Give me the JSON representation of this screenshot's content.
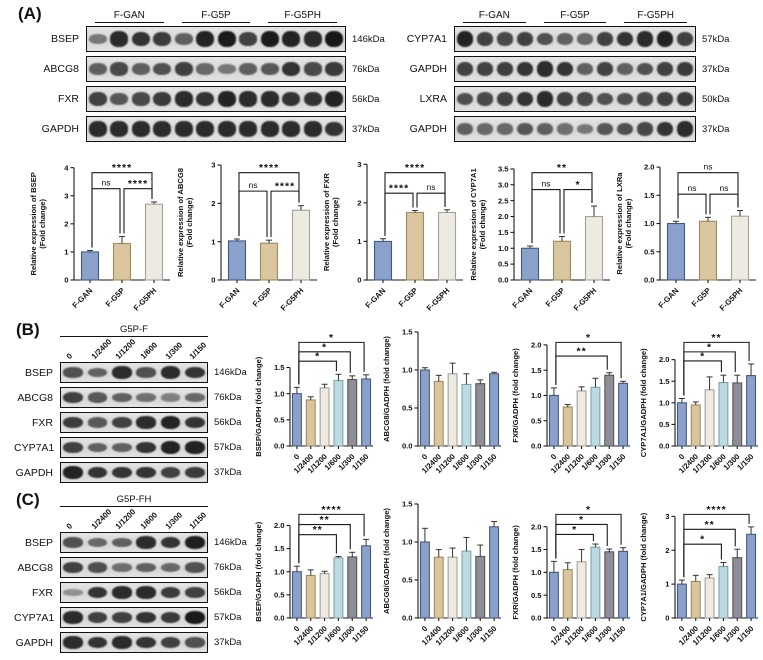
{
  "panels": {
    "a": "(A)",
    "b": "(B)",
    "c": "(C)"
  },
  "colors": {
    "blue": {
      "fill": "#8AA2CB",
      "stroke": "#46597E"
    },
    "tan": {
      "fill": "#D9C59E",
      "stroke": "#9E8B61"
    },
    "cream": {
      "fill": "#ECEAE1",
      "stroke": "#A5A299"
    },
    "lightblue": {
      "fill": "#BCDAE2",
      "stroke": "#7FA4B0"
    },
    "gray": {
      "fill": "#8E8E96",
      "stroke": "#54545C"
    }
  },
  "palettes": {
    "a": [
      "blue",
      "tan",
      "cream"
    ],
    "bc": [
      "blue",
      "tan",
      "cream",
      "lightblue",
      "gray",
      "blue"
    ]
  },
  "blots": [
    {
      "id": "a-left",
      "layout": "grouped",
      "groups": [
        "F-GAN",
        "F-G5P",
        "F-G5PH"
      ],
      "rows": [
        {
          "protein": "BSEP",
          "kda": "146kDa",
          "bands": [
            0.35,
            0.85,
            0.8,
            0.75,
            0.5,
            0.9,
            0.95,
            0.7,
            0.95,
            0.9,
            0.85,
            0.97
          ]
        },
        {
          "protein": "ABCG8",
          "kda": "76kDa",
          "bands": [
            0.5,
            0.65,
            0.5,
            0.6,
            0.7,
            0.45,
            0.35,
            0.5,
            0.55,
            0.8,
            0.65,
            0.75
          ]
        },
        {
          "protein": "FXR",
          "kda": "56kDa",
          "bands": [
            0.7,
            0.55,
            0.65,
            0.75,
            0.85,
            0.8,
            0.9,
            0.85,
            0.85,
            0.8,
            0.8,
            0.9
          ]
        },
        {
          "protein": "GAPDH",
          "kda": "37kDa",
          "bands": [
            0.85,
            0.85,
            0.85,
            0.85,
            0.85,
            0.85,
            0.85,
            0.85,
            0.85,
            0.85,
            0.85,
            0.8
          ]
        }
      ]
    },
    {
      "id": "a-right",
      "layout": "grouped",
      "groups": [
        "F-GAN",
        "F-G5P",
        "F-G5PH"
      ],
      "rows": [
        {
          "protein": "CYP7A1",
          "kda": "57kDa",
          "bands": [
            0.9,
            0.7,
            0.65,
            0.7,
            0.6,
            0.5,
            0.45,
            0.7,
            0.8,
            0.85,
            0.9,
            0.7
          ]
        },
        {
          "protein": "GAPDH",
          "kda": "37kDa",
          "bands": [
            0.7,
            0.7,
            0.72,
            0.8,
            0.85,
            0.8,
            0.5,
            0.7,
            0.5,
            0.6,
            0.7,
            0.75
          ]
        },
        {
          "protein": "LXRA",
          "kda": "50kDa",
          "bands": [
            0.6,
            0.65,
            0.7,
            0.8,
            0.85,
            0.7,
            0.65,
            0.6,
            0.6,
            0.65,
            0.7,
            0.75
          ]
        },
        {
          "protein": "GAPDH",
          "kda": "37kDa",
          "bands": [
            0.5,
            0.45,
            0.45,
            0.55,
            0.5,
            0.4,
            0.35,
            0.55,
            0.6,
            0.65,
            0.8,
            0.85
          ]
        }
      ]
    },
    {
      "id": "b",
      "layout": "dose",
      "title": "G5P-F",
      "lane_labels": [
        "0",
        "1/2400",
        "1/1200",
        "1/600",
        "1/300",
        "1/150"
      ],
      "rows": [
        {
          "protein": "BSEP",
          "kda": "146kDa",
          "bands": [
            0.6,
            0.5,
            0.85,
            0.6,
            0.85,
            0.8
          ]
        },
        {
          "protein": "ABCG8",
          "kda": "76kDa",
          "bands": [
            0.7,
            0.55,
            0.5,
            0.4,
            0.3,
            0.45
          ]
        },
        {
          "protein": "FXR",
          "kda": "56kDa",
          "bands": [
            0.75,
            0.55,
            0.7,
            0.85,
            0.9,
            0.8
          ]
        },
        {
          "protein": "CYP7A1",
          "kda": "57kDa",
          "bands": [
            0.7,
            0.5,
            0.5,
            0.8,
            0.9,
            0.9
          ]
        },
        {
          "protein": "GAPDH",
          "kda": "37kDa",
          "bands": [
            0.9,
            0.8,
            0.8,
            0.8,
            0.7,
            0.75
          ]
        }
      ]
    },
    {
      "id": "c",
      "layout": "dose",
      "title": "G5P-FH",
      "lane_labels": [
        "0",
        "1/2400",
        "1/1200",
        "1/600",
        "1/300",
        "1/150"
      ],
      "rows": [
        {
          "protein": "BSEP",
          "kda": "146kDa",
          "bands": [
            0.6,
            0.45,
            0.5,
            0.85,
            0.8,
            0.92
          ]
        },
        {
          "protein": "ABCG8",
          "kda": "76kDa",
          "bands": [
            0.7,
            0.6,
            0.4,
            0.5,
            0.45,
            0.6
          ]
        },
        {
          "protein": "FXR",
          "kda": "56kDa",
          "bands": [
            0.18,
            0.8,
            0.85,
            0.85,
            0.75,
            0.7
          ]
        },
        {
          "protein": "CYP7A1",
          "kda": "57kDa",
          "bands": [
            0.85,
            0.7,
            0.7,
            0.8,
            0.75,
            0.95
          ]
        },
        {
          "protein": "GAPDH",
          "kda": "37kDa",
          "bands": [
            0.85,
            0.8,
            0.85,
            0.8,
            0.7,
            0.6
          ]
        }
      ]
    }
  ],
  "chart_data": [
    {
      "id": "a-bsep",
      "panel": "a",
      "type": "bar",
      "palette": "a",
      "ylabel_lines": [
        "Relative expression of BSEP",
        "(Fold change)"
      ],
      "categories": [
        "F-GAN",
        "F-G5P",
        "F-G5PH"
      ],
      "values": [
        1.0,
        1.3,
        2.7
      ],
      "errors": [
        0.05,
        0.25,
        0.08
      ],
      "ylim": [
        0,
        4
      ],
      "yticks": [
        "0",
        "1",
        "2",
        "3",
        "4"
      ],
      "sig": [
        {
          "a": 0,
          "b": 1,
          "label": "ns",
          "y": 3.25
        },
        {
          "a": 1,
          "b": 2,
          "label": "****",
          "y": 3.25
        },
        {
          "a": 0,
          "b": 2,
          "label": "****",
          "y": 3.82
        }
      ]
    },
    {
      "id": "a-abcg8",
      "panel": "a",
      "type": "bar",
      "palette": "a",
      "ylabel_lines": [
        "Relative expression of ABCG8",
        "(Fold change)"
      ],
      "categories": [
        "F-GAN",
        "F-G5P",
        "F-G5PH"
      ],
      "values": [
        1.02,
        0.96,
        1.82
      ],
      "errors": [
        0.05,
        0.08,
        0.12
      ],
      "ylim": [
        0,
        3
      ],
      "yticks": [
        "0",
        "1",
        "2",
        "3"
      ],
      "sig": [
        {
          "a": 0,
          "b": 1,
          "label": "ns",
          "y": 2.32
        },
        {
          "a": 1,
          "b": 2,
          "label": "****",
          "y": 2.32
        },
        {
          "a": 0,
          "b": 2,
          "label": "****",
          "y": 2.8
        }
      ]
    },
    {
      "id": "a-fxr",
      "panel": "a",
      "type": "bar",
      "palette": "a",
      "ylabel_lines": [
        "Relative expression of FXR",
        "(Fold change)"
      ],
      "categories": [
        "F-GAN",
        "F-G5P",
        "F-G5PH"
      ],
      "values": [
        1.0,
        1.75,
        1.75
      ],
      "errors": [
        0.07,
        0.05,
        0.07
      ],
      "ylim": [
        0,
        3
      ],
      "yticks": [
        "0",
        "1",
        "2",
        "3"
      ],
      "sig": [
        {
          "a": 0,
          "b": 1,
          "label": "****",
          "y": 2.25
        },
        {
          "a": 1,
          "b": 2,
          "label": "ns",
          "y": 2.25
        },
        {
          "a": 0,
          "b": 2,
          "label": "****",
          "y": 2.78
        }
      ]
    },
    {
      "id": "a-cyp7a1",
      "panel": "a",
      "type": "bar",
      "palette": "a",
      "ylabel_lines": [
        "Relative expression of CYP7A1",
        "(Fold change)"
      ],
      "categories": [
        "F-GAN",
        "F-G5P",
        "F-G5PH"
      ],
      "values": [
        1.0,
        1.22,
        2.0
      ],
      "errors": [
        0.07,
        0.15,
        0.33
      ],
      "ylim": [
        0,
        3.5
      ],
      "yticks": [
        "0.0",
        "0.5",
        "1.0",
        "1.5",
        "2.0",
        "2.5",
        "3.0",
        "3.5"
      ],
      "sig": [
        {
          "a": 0,
          "b": 1,
          "label": "ns",
          "y": 2.85
        },
        {
          "a": 1,
          "b": 2,
          "label": "*",
          "y": 2.85
        },
        {
          "a": 0,
          "b": 2,
          "label": "**",
          "y": 3.38
        }
      ]
    },
    {
      "id": "a-lxra",
      "panel": "a",
      "type": "bar",
      "palette": "a",
      "ylabel_lines": [
        "Relative expression of LXRa",
        "(Fold change)"
      ],
      "categories": [
        "F-GAN",
        "F-G5P",
        "F-G5PH"
      ],
      "values": [
        1.0,
        1.04,
        1.13
      ],
      "errors": [
        0.04,
        0.07,
        0.1
      ],
      "ylim": [
        0,
        2
      ],
      "yticks": [
        "0.0",
        "0.5",
        "1.0",
        "1.5",
        "2.0"
      ],
      "sig": [
        {
          "a": 0,
          "b": 1,
          "label": "ns",
          "y": 1.52
        },
        {
          "a": 1,
          "b": 2,
          "label": "ns",
          "y": 1.52
        },
        {
          "a": 0,
          "b": 2,
          "label": "ns",
          "y": 1.9
        }
      ]
    },
    {
      "id": "b-bsep",
      "panel": "b",
      "type": "bar",
      "palette": "bc",
      "ylabel_lines": [
        "BSEP/GADPH (fold change)"
      ],
      "categories": [
        "0",
        "1/2400",
        "1/1200",
        "1/600",
        "1/300",
        "1/150"
      ],
      "values": [
        1.0,
        0.88,
        1.11,
        1.25,
        1.27,
        1.28
      ],
      "errors": [
        0.12,
        0.06,
        0.07,
        0.12,
        0.07,
        0.08
      ],
      "ylim": [
        0,
        1.5
      ],
      "yticks": [
        "0.0",
        "0.5",
        "1.0",
        "1.5"
      ],
      "sig": [
        {
          "a": 0,
          "b": 3,
          "label": "*",
          "y": 1.62
        },
        {
          "a": 0,
          "b": 4,
          "label": "*",
          "y": 1.8
        },
        {
          "a": 0,
          "b": 5,
          "label": "*",
          "y": 1.98
        }
      ]
    },
    {
      "id": "b-abcg8",
      "panel": "b",
      "type": "bar",
      "palette": "bc",
      "ylabel_lines": [
        "ABCG8/GADPH (fold change)"
      ],
      "categories": [
        "0",
        "1/2400",
        "1/1200",
        "1/600",
        "1/300",
        "1/150"
      ],
      "values": [
        1.0,
        0.85,
        0.95,
        0.81,
        0.82,
        0.95
      ],
      "errors": [
        0.03,
        0.08,
        0.14,
        0.14,
        0.05,
        0.02
      ],
      "ylim": [
        0,
        1.5
      ],
      "yticks": [
        "0.0",
        "0.5",
        "1.0",
        "1.5"
      ],
      "sig": []
    },
    {
      "id": "b-fxr",
      "panel": "b",
      "type": "bar",
      "palette": "bc",
      "ylabel_lines": [
        "FXR/GADPH (fold change)"
      ],
      "categories": [
        "0",
        "1/2400",
        "1/1200",
        "1/600",
        "1/300",
        "1/150"
      ],
      "values": [
        1.0,
        0.77,
        1.09,
        1.16,
        1.4,
        1.24
      ],
      "errors": [
        0.15,
        0.05,
        0.08,
        0.18,
        0.05,
        0.04
      ],
      "ylim": [
        0,
        2
      ],
      "yticks": [
        "0.0",
        "0.5",
        "1.0",
        "1.5",
        "2.0"
      ],
      "sig": [
        {
          "a": 0,
          "b": 4,
          "label": "**",
          "y": 1.78
        },
        {
          "a": 0,
          "b": 5,
          "label": "*",
          "y": 2.05
        }
      ]
    },
    {
      "id": "b-cyp7a1",
      "panel": "b",
      "type": "bar",
      "palette": "bc",
      "ylabel_lines": [
        "CYP7A1/GADPH (fold change)"
      ],
      "categories": [
        "0",
        "1/2400",
        "1/1200",
        "1/600",
        "1/300",
        "1/150"
      ],
      "values": [
        1.0,
        0.95,
        1.3,
        1.47,
        1.46,
        1.63
      ],
      "errors": [
        0.1,
        0.07,
        0.3,
        0.17,
        0.18,
        0.27
      ],
      "ylim": [
        0,
        2
      ],
      "yticks": [
        "0.0",
        "0.5",
        "1.0",
        "1.5",
        "2.0"
      ],
      "sig": [
        {
          "a": 0,
          "b": 3,
          "label": "*",
          "y": 1.97
        },
        {
          "a": 0,
          "b": 4,
          "label": "*",
          "y": 2.18
        },
        {
          "a": 0,
          "b": 5,
          "label": "**",
          "y": 2.4
        }
      ]
    },
    {
      "id": "c-bsep",
      "panel": "c",
      "type": "bar",
      "palette": "bc",
      "ylabel_lines": [
        "BSEP/GADPH (fold change)"
      ],
      "categories": [
        "0",
        "1/2400",
        "1/1200",
        "1/600",
        "1/300",
        "1/150"
      ],
      "values": [
        1.0,
        0.92,
        0.96,
        1.3,
        1.32,
        1.56
      ],
      "errors": [
        0.12,
        0.12,
        0.05,
        0.03,
        0.1,
        0.14
      ],
      "ylim": [
        0,
        2
      ],
      "yticks": [
        "0.0",
        "0.5",
        "1.0",
        "1.5",
        "2.0"
      ],
      "sig": [
        {
          "a": 0,
          "b": 3,
          "label": "**",
          "y": 1.8
        },
        {
          "a": 0,
          "b": 4,
          "label": "**",
          "y": 2.02
        },
        {
          "a": 0,
          "b": 5,
          "label": "****",
          "y": 2.24
        }
      ]
    },
    {
      "id": "c-abcg8",
      "panel": "c",
      "type": "bar",
      "palette": "bc",
      "ylabel_lines": [
        "ABCG8/GADPH (fold change)"
      ],
      "categories": [
        "0",
        "1/2400",
        "1/1200",
        "1/600",
        "1/300",
        "1/150"
      ],
      "values": [
        1.0,
        0.8,
        0.8,
        0.88,
        0.81,
        1.2
      ],
      "errors": [
        0.18,
        0.1,
        0.12,
        0.18,
        0.15,
        0.07
      ],
      "ylim": [
        0,
        1.5
      ],
      "yticks": [
        "0.0",
        "0.5",
        "1.0",
        "1.5"
      ],
      "sig": []
    },
    {
      "id": "c-fxr",
      "panel": "c",
      "type": "bar",
      "palette": "bc",
      "ylabel_lines": [
        "FXR/GADPH (fold change)"
      ],
      "categories": [
        "0",
        "1/2400",
        "1/1200",
        "1/600",
        "1/300",
        "1/150"
      ],
      "values": [
        1.0,
        1.06,
        1.23,
        1.55,
        1.45,
        1.46
      ],
      "errors": [
        0.24,
        0.15,
        0.27,
        0.07,
        0.06,
        0.08
      ],
      "ylim": [
        0,
        2
      ],
      "yticks": [
        "0.0",
        "0.5",
        "1.0",
        "1.5",
        "2.0"
      ],
      "sig": [
        {
          "a": 0,
          "b": 3,
          "label": "*",
          "y": 1.83
        },
        {
          "a": 0,
          "b": 4,
          "label": "*",
          "y": 2.05
        },
        {
          "a": 0,
          "b": 5,
          "label": "*",
          "y": 2.27
        }
      ]
    },
    {
      "id": "c-cyp7a1",
      "panel": "c",
      "type": "bar",
      "palette": "bc",
      "ylabel_lines": [
        "CYP7A1/GADPH (fold change)"
      ],
      "categories": [
        "0",
        "1/2400",
        "1/1200",
        "1/600",
        "1/300",
        "1/150"
      ],
      "values": [
        1.0,
        1.08,
        1.18,
        1.52,
        1.78,
        2.47
      ],
      "errors": [
        0.12,
        0.18,
        0.1,
        0.12,
        0.25,
        0.22
      ],
      "ylim": [
        0,
        3
      ],
      "yticks": [
        "0",
        "1",
        "2",
        "3"
      ],
      "sig": [
        {
          "a": 0,
          "b": 3,
          "label": "*",
          "y": 2.18
        },
        {
          "a": 0,
          "b": 4,
          "label": "**",
          "y": 2.62
        },
        {
          "a": 0,
          "b": 5,
          "label": "****",
          "y": 3.06
        }
      ]
    }
  ]
}
